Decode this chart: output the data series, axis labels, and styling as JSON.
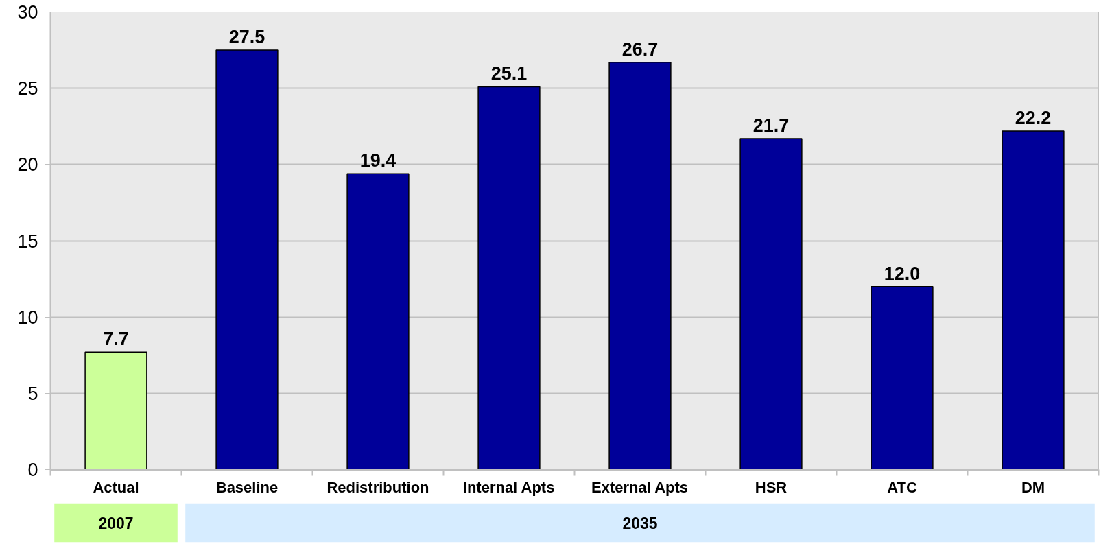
{
  "chart_data": {
    "type": "bar",
    "categories": [
      "Actual",
      "Baseline",
      "Redistribution",
      "Internal Apts",
      "External Apts",
      "HSR",
      "ATC",
      "DM"
    ],
    "values": [
      7.7,
      27.5,
      19.4,
      25.1,
      26.7,
      21.7,
      12.0,
      22.2
    ],
    "value_labels": [
      "7.7",
      "27.5",
      "19.4",
      "25.1",
      "26.7",
      "21.7",
      "12.0",
      "22.2"
    ],
    "colors": [
      "#ccff99",
      "#000099",
      "#000099",
      "#000099",
      "#000099",
      "#000099",
      "#000099",
      "#000099"
    ],
    "ylim": [
      0,
      30
    ],
    "yticks": [
      0,
      5,
      10,
      15,
      20,
      25,
      30
    ],
    "grid": "y",
    "annotations": [
      "2007",
      "2035"
    ]
  }
}
